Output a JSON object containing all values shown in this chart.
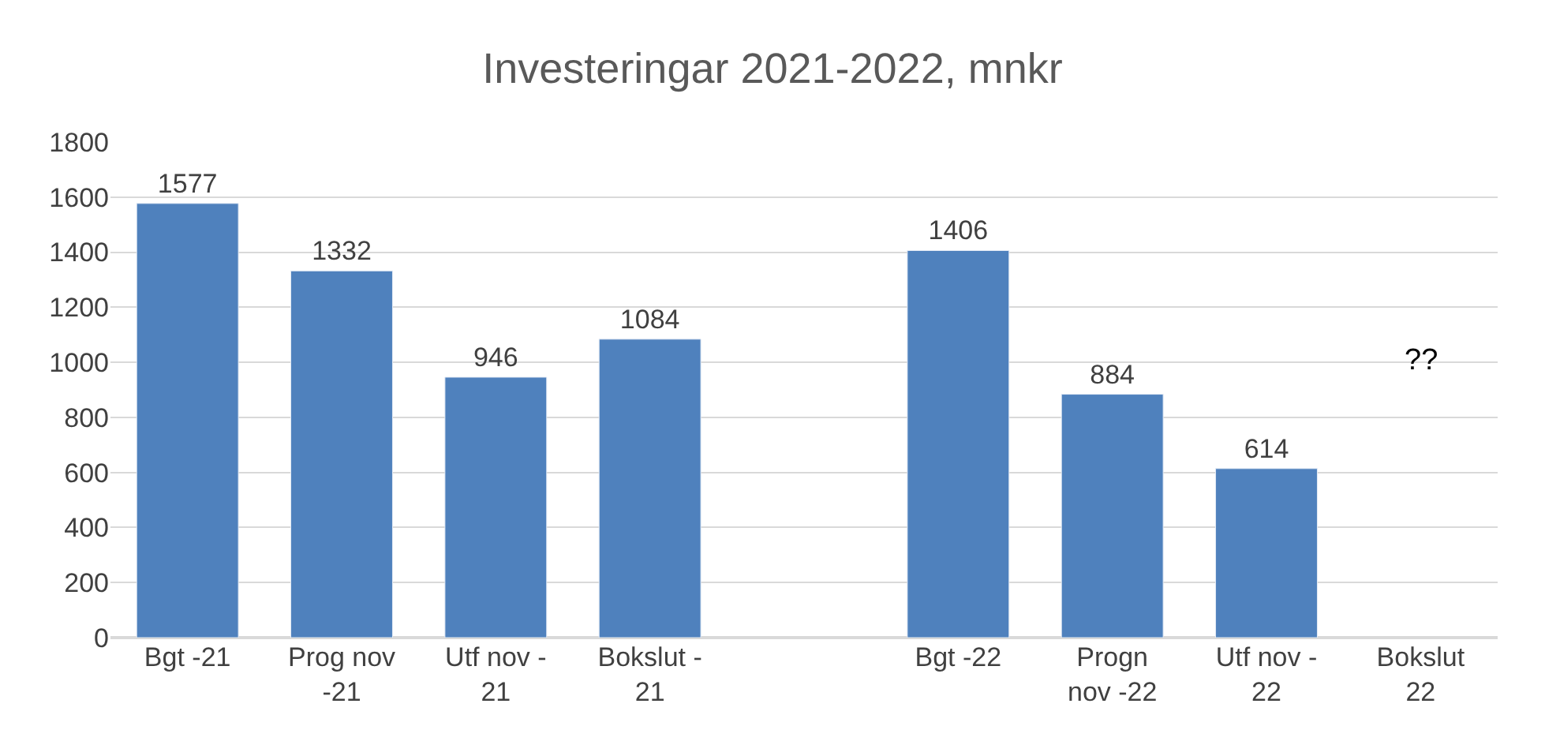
{
  "chart_data": {
    "type": "bar",
    "title": "Investeringar 2021-2022, mnkr",
    "categories": [
      "Bgt -21",
      "Prog nov\n-21",
      "Utf nov -\n21",
      "Bokslut -\n21",
      null,
      "Bgt -22",
      "Progn\nnov -22",
      "Utf nov -\n22",
      "Bokslut\n22"
    ],
    "values": [
      1577,
      1332,
      946,
      1084,
      null,
      1406,
      884,
      614,
      null
    ],
    "color": "#4f81bd",
    "data_labels": true,
    "annotations": [
      "??"
    ],
    "ylim": [
      0,
      1800
    ],
    "yticks": [
      0,
      200,
      400,
      600,
      800,
      1000,
      1200,
      1400,
      1600,
      1800
    ],
    "grid": "y"
  }
}
